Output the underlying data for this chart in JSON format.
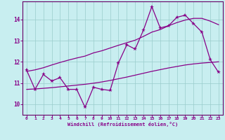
{
  "xlabel": "Windchill (Refroidissement éolien,°C)",
  "bg_color": "#c8eef0",
  "grid_color": "#99cccc",
  "line_color": "#880088",
  "spine_color": "#660066",
  "xlim": [
    -0.5,
    23.5
  ],
  "ylim": [
    9.5,
    14.85
  ],
  "xticks": [
    0,
    1,
    2,
    3,
    4,
    5,
    6,
    7,
    8,
    9,
    10,
    11,
    12,
    13,
    14,
    15,
    16,
    17,
    18,
    19,
    20,
    21,
    22,
    23
  ],
  "yticks": [
    10,
    11,
    12,
    13,
    14
  ],
  "hours": [
    0,
    1,
    2,
    3,
    4,
    5,
    6,
    7,
    8,
    9,
    10,
    11,
    12,
    13,
    14,
    15,
    16,
    17,
    18,
    19,
    20,
    21,
    22,
    23
  ],
  "windchill": [
    11.6,
    10.7,
    11.4,
    11.1,
    11.25,
    10.7,
    10.7,
    9.85,
    10.8,
    10.7,
    10.65,
    11.95,
    12.8,
    12.6,
    13.5,
    14.6,
    13.6,
    13.7,
    14.1,
    14.2,
    13.8,
    13.4,
    12.1,
    11.5
  ],
  "trend1": [
    10.7,
    10.72,
    10.75,
    10.78,
    10.82,
    10.86,
    10.9,
    10.94,
    10.99,
    11.05,
    11.12,
    11.2,
    11.28,
    11.37,
    11.46,
    11.55,
    11.63,
    11.71,
    11.78,
    11.85,
    11.9,
    11.94,
    11.97,
    12.0
  ],
  "trend2": [
    11.55,
    11.62,
    11.72,
    11.85,
    11.97,
    12.08,
    12.18,
    12.27,
    12.42,
    12.52,
    12.65,
    12.78,
    12.9,
    13.02,
    13.2,
    13.4,
    13.52,
    13.7,
    13.85,
    13.97,
    14.05,
    14.05,
    13.92,
    13.75
  ]
}
